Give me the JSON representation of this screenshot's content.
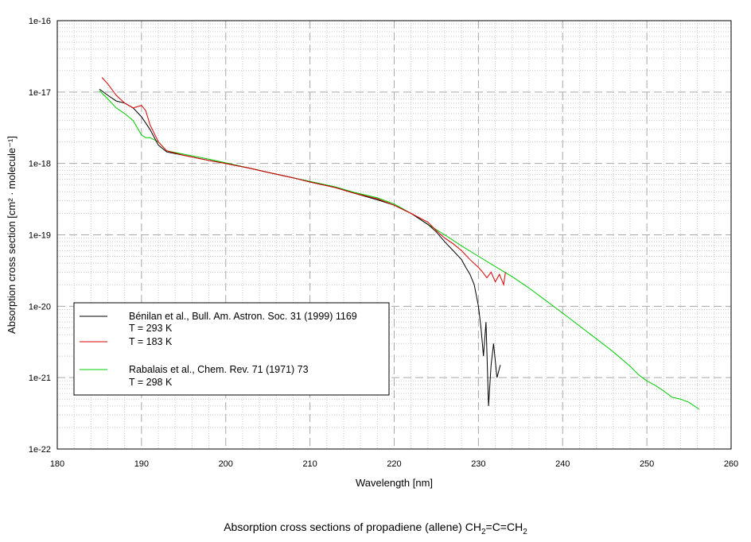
{
  "caption": {
    "text": "Absorption cross sections of propadiene (allene) CH",
    "sub1": "2",
    "mid": "=C=CH",
    "sub2": "2"
  },
  "chart_data": {
    "type": "line",
    "xlabel": "Wavelength [nm]",
    "ylabel": "Absorption cross section [cm² · molecule⁻¹]",
    "xlim": [
      180,
      260
    ],
    "ylim": [
      1e-22,
      1e-16
    ],
    "yscale": "log",
    "grid": true,
    "legend_position": "lower-left",
    "x_ticks": [
      "180",
      "190",
      "200",
      "210",
      "220",
      "230",
      "240",
      "250",
      "260"
    ],
    "y_ticks": [
      "1e-16",
      "1e-17",
      "1e-18",
      "1e-19",
      "1e-20",
      "1e-21",
      "1e-22"
    ],
    "legend": {
      "line1": "Bénilan et al., Bull. Am. Astron. Soc. 31 (1999) 1169",
      "line2": "T = 293 K",
      "line3": "T = 183 K",
      "line4": "Rabalais et al., Chem. Rev. 71 (1971) 73",
      "line5": "T = 298 K"
    },
    "series": [
      {
        "color": "#00cc00",
        "x": [
          185.0,
          186.0,
          187.0,
          188.0,
          189.0,
          190.0,
          190.5,
          191.0,
          192.0,
          193.0,
          195.0,
          198.0,
          200.0,
          203.0,
          205.0,
          208.0,
          210.0,
          213.0,
          215.0,
          218.0,
          220.0,
          222.0,
          224.0,
          226.0,
          228.0,
          230.0,
          232.0,
          234.0,
          236.0,
          238.0,
          240.0,
          242.0,
          244.0,
          246.0,
          248.0,
          249.0,
          250.0,
          251.0,
          252.0,
          253.0,
          254.0,
          255.0,
          256.2
        ],
        "y": [
          1.05e-17,
          8e-18,
          6e-18,
          5e-18,
          4e-18,
          2.5e-18,
          2.3e-18,
          2.3e-18,
          2e-18,
          1.5e-18,
          1.35e-18,
          1.15e-18,
          1.02e-18,
          8.5e-19,
          7.5e-19,
          6.3e-19,
          5.6e-19,
          4.7e-19,
          4e-19,
          3.3e-19,
          2.7e-19,
          2e-19,
          1.4e-19,
          1e-19,
          7e-20,
          5e-20,
          3.6e-20,
          2.6e-20,
          1.8e-20,
          1.2e-20,
          8e-21,
          5.3e-21,
          3.5e-21,
          2.3e-21,
          1.45e-21,
          1.1e-21,
          9e-22,
          7.8e-22,
          6.5e-22,
          5.3e-22,
          5e-22,
          4.5e-22,
          3.6e-22
        ]
      },
      {
        "color": "#000000",
        "x": [
          185.0,
          186.0,
          187.0,
          188.0,
          189.0,
          190.0,
          191.0,
          192.0,
          193.0,
          195.0,
          198.0,
          200.0,
          203.0,
          205.0,
          208.0,
          210.0,
          213.0,
          215.0,
          218.0,
          220.0,
          222.0,
          224.0,
          225.0,
          226.0,
          227.0,
          228.0,
          228.5,
          229.0,
          229.5,
          230.0,
          230.3,
          230.6,
          230.9,
          231.2,
          231.5,
          231.8,
          232.2,
          232.6
        ],
        "y": [
          1.1e-17,
          9e-18,
          7.5e-18,
          7e-18,
          6e-18,
          4.5e-18,
          3e-18,
          1.8e-18,
          1.45e-18,
          1.3e-18,
          1.1e-18,
          1e-18,
          8.5e-19,
          7.5e-19,
          6.3e-19,
          5.5e-19,
          4.6e-19,
          3.9e-19,
          3.1e-19,
          2.6e-19,
          2e-19,
          1.4e-19,
          1.1e-19,
          8e-20,
          6e-20,
          4.5e-20,
          3.5e-20,
          2.8e-20,
          2e-20,
          1e-20,
          5e-21,
          2e-21,
          6e-21,
          4e-22,
          1.5e-21,
          3e-21,
          1e-21,
          1.5e-21
        ]
      },
      {
        "color": "#dd0000",
        "x": [
          185.3,
          186.0,
          187.0,
          188.0,
          189.0,
          190.0,
          190.5,
          191.0,
          192.0,
          193.0,
          195.0,
          198.0,
          200.0,
          203.0,
          205.0,
          208.0,
          210.0,
          213.0,
          215.0,
          218.0,
          220.0,
          222.0,
          224.0,
          225.0,
          226.0,
          227.0,
          228.0,
          229.0,
          230.0,
          230.5,
          231.0,
          231.5,
          232.0,
          232.5,
          233.0,
          233.2
        ],
        "y": [
          1.6e-17,
          1.3e-17,
          9e-18,
          7e-18,
          6e-18,
          6.5e-18,
          5.5e-18,
          3.5e-18,
          2e-18,
          1.5e-18,
          1.3e-18,
          1.1e-18,
          1e-18,
          8.5e-19,
          7.5e-19,
          6.3e-19,
          5.5e-19,
          4.6e-19,
          3.9e-19,
          3.2e-19,
          2.6e-19,
          2e-19,
          1.5e-19,
          1.15e-19,
          9e-20,
          7.5e-20,
          6e-20,
          4.5e-20,
          3.5e-20,
          3e-20,
          2.5e-20,
          3e-20,
          2.2e-20,
          2.8e-20,
          2e-20,
          3e-20
        ]
      }
    ]
  }
}
